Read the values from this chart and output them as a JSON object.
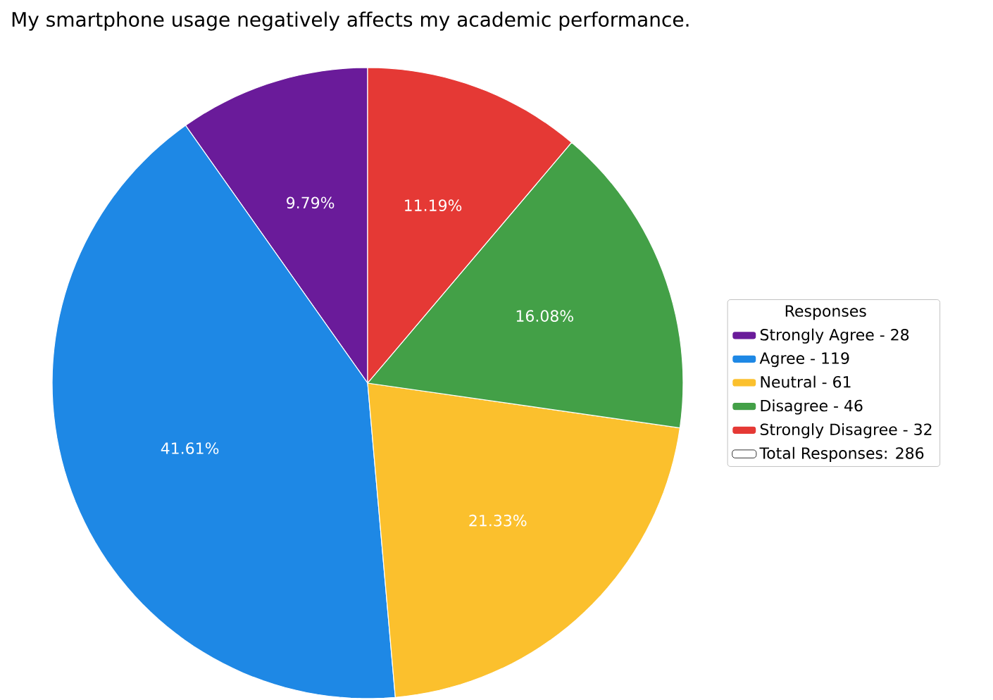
{
  "chart_data": {
    "type": "pie",
    "title": "My smartphone usage negatively affects my academic performance.",
    "categories": [
      "Strongly Agree - 28",
      "Agree - 119",
      "Neutral - 61",
      "Disagree - 46",
      "Strongly Disagree - 32"
    ],
    "values": [
      9.79,
      41.61,
      21.33,
      16.08,
      11.19
    ],
    "value_labels": [
      "9.79%",
      "41.61%",
      "21.33%",
      "16.08%",
      "11.19%"
    ],
    "colors": [
      "#6a1b9a",
      "#1e88e5",
      "#fbc02d",
      "#43a047",
      "#e53935"
    ],
    "legend_title": "Responses",
    "legend": "right",
    "annotations": [
      "Total Responses: 286"
    ]
  }
}
